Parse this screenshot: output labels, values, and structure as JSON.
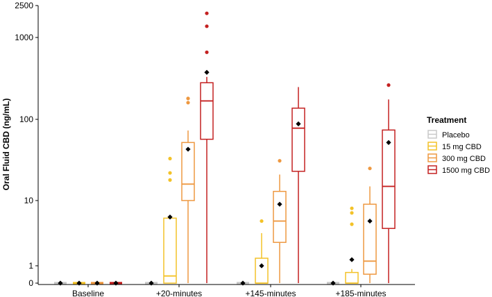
{
  "chart_data": {
    "type": "box",
    "ylabel": "Oral Fluid CBD (ng/mL)",
    "xlabel": "",
    "y_scale": "pseudo-log",
    "ylim": [
      0,
      2500
    ],
    "y_ticks": [
      0,
      1,
      10,
      100,
      1000,
      2500
    ],
    "y_tick_labels": [
      "0",
      "1",
      "10",
      "100",
      "1000",
      "2500"
    ],
    "categories": [
      "Baseline",
      "+20-minutes",
      "+145-minutes",
      "+185-minutes"
    ],
    "legend": {
      "title": "Treatment",
      "position": "right",
      "entries": [
        "Placebo",
        "15 mg CBD",
        "300 mg CBD",
        "1500 mg CBD"
      ]
    },
    "series": [
      {
        "name": "Placebo",
        "color": "#c8c8c8",
        "boxes": [
          {
            "category": "Baseline",
            "min": 0,
            "q1": 0,
            "median": 0,
            "q3": 0,
            "max": 0,
            "mean": 0,
            "outliers": []
          },
          {
            "category": "+20-minutes",
            "min": 0,
            "q1": 0,
            "median": 0,
            "q3": 0,
            "max": 0,
            "mean": 0,
            "outliers": []
          },
          {
            "category": "+145-minutes",
            "min": 0,
            "q1": 0,
            "median": 0,
            "q3": 0,
            "max": 0,
            "mean": 0,
            "outliers": []
          },
          {
            "category": "+185-minutes",
            "min": 0,
            "q1": 0,
            "median": 0,
            "q3": 0,
            "max": 0,
            "mean": 0,
            "outliers": []
          }
        ]
      },
      {
        "name": "15 mg CBD",
        "color": "#f3c228",
        "boxes": [
          {
            "category": "Baseline",
            "min": 0,
            "q1": 0,
            "median": 0,
            "q3": 0,
            "max": 0,
            "mean": 0,
            "outliers": []
          },
          {
            "category": "+20-minutes",
            "min": 0,
            "q1": 0,
            "median": 0.4,
            "q3": 6,
            "max": 6.5,
            "mean": 6.2,
            "outliers": [
              18,
              22,
              33
            ]
          },
          {
            "category": "+145-minutes",
            "min": 0,
            "q1": 0,
            "median": 0,
            "q3": 1.5,
            "max": 3.8,
            "mean": 1,
            "outliers": [
              5.5
            ]
          },
          {
            "category": "+185-minutes",
            "min": 0,
            "q1": 0,
            "median": 0,
            "q3": 0.6,
            "max": 0.8,
            "mean": 1.4,
            "outliers": [
              5,
              7,
              8
            ]
          }
        ]
      },
      {
        "name": "300 mg CBD",
        "color": "#ee9840",
        "boxes": [
          {
            "category": "Baseline",
            "min": 0,
            "q1": 0,
            "median": 0,
            "q3": 0,
            "max": 0,
            "mean": 0,
            "outliers": []
          },
          {
            "category": "+20-minutes",
            "min": 0,
            "q1": 10,
            "median": 16,
            "q3": 52,
            "max": 73,
            "mean": 43,
            "outliers": [
              160,
              180
            ]
          },
          {
            "category": "+145-minutes",
            "min": 0,
            "q1": 2.8,
            "median": 5.5,
            "q3": 13,
            "max": 21,
            "mean": 9,
            "outliers": [
              31
            ]
          },
          {
            "category": "+185-minutes",
            "min": 0,
            "q1": 0.5,
            "median": 1.3,
            "q3": 9,
            "max": 15,
            "mean": 5.5,
            "outliers": [
              25
            ]
          }
        ]
      },
      {
        "name": "1500 mg CBD",
        "color": "#c42121",
        "boxes": [
          {
            "category": "Baseline",
            "min": 0,
            "q1": 0,
            "median": 0,
            "q3": 0,
            "max": 0,
            "mean": 0,
            "outliers": []
          },
          {
            "category": "+20-minutes",
            "min": 0,
            "q1": 57,
            "median": 168,
            "q3": 280,
            "max": 330,
            "mean": 375,
            "outliers": [
              660,
              1380,
              2000
            ]
          },
          {
            "category": "+145-minutes",
            "min": 0,
            "q1": 23,
            "median": 78,
            "q3": 137,
            "max": 248,
            "mean": 88,
            "outliers": []
          },
          {
            "category": "+185-minutes",
            "min": 0,
            "q1": 4.4,
            "median": 15,
            "q3": 74,
            "max": 175,
            "mean": 52,
            "outliers": [
              262
            ]
          }
        ]
      }
    ]
  }
}
